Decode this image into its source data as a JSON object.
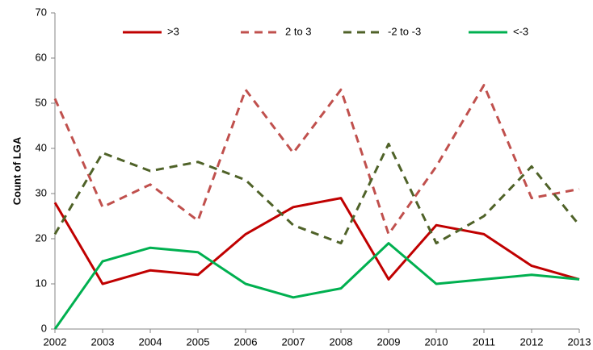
{
  "chart_data": {
    "type": "line",
    "y_label": "Count of LGA",
    "x": [
      2002,
      2003,
      2004,
      2005,
      2006,
      2007,
      2008,
      2009,
      2010,
      2011,
      2012,
      2013
    ],
    "xlim": [
      2002,
      2013
    ],
    "xticks": [
      2002,
      2003,
      2004,
      2005,
      2006,
      2007,
      2008,
      2009,
      2010,
      2011,
      2012,
      2013
    ],
    "ylim": [
      0,
      70
    ],
    "yticks": [
      0,
      10,
      20,
      30,
      40,
      50,
      60,
      70
    ],
    "legend": "top",
    "series": [
      {
        "name": ">3",
        "color": "#c00000",
        "dash": false,
        "values": [
          28,
          10,
          13,
          12,
          21,
          27,
          29,
          11,
          23,
          21,
          14,
          11
        ]
      },
      {
        "name": "2 to 3",
        "color": "#c0504d",
        "dash": true,
        "values": [
          51,
          27,
          32,
          24,
          53,
          39,
          53,
          21,
          36,
          54,
          29,
          31
        ]
      },
      {
        "name": "-2 to -3",
        "color": "#4f6228",
        "dash": true,
        "values": [
          21,
          39,
          35,
          37,
          33,
          23,
          19,
          41,
          19,
          25,
          36,
          23
        ]
      },
      {
        "name": "<-3",
        "color": "#00b050",
        "dash": false,
        "values": [
          0,
          15,
          18,
          17,
          10,
          7,
          9,
          19,
          10,
          11,
          12,
          11
        ]
      }
    ]
  }
}
